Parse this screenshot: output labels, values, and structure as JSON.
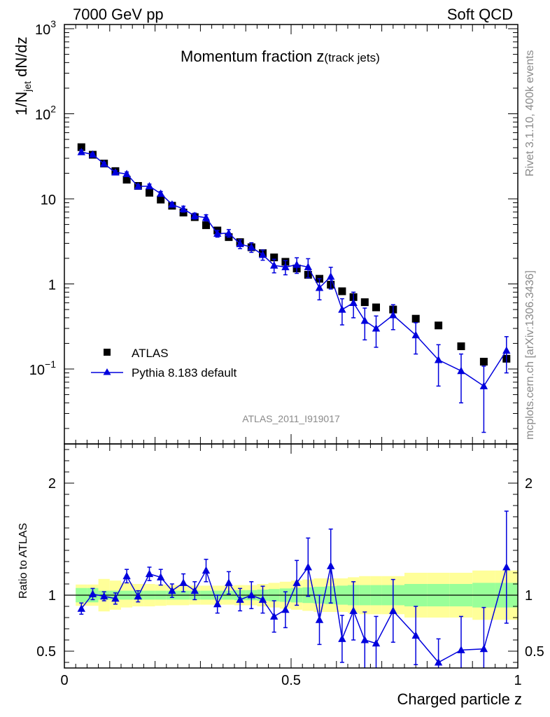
{
  "header": {
    "left": "7000 GeV pp",
    "right": "Soft QCD"
  },
  "side_labels": {
    "rivet": "Rivet 3.1.10,  400k events",
    "mcplots": "mcplots.cern.ch [arXiv:1306.3436]"
  },
  "chart_data": [
    {
      "type": "scatter",
      "panel": "main",
      "title_main": "Momentum fraction z",
      "title_sub": "(track jets)",
      "ylabel_main": "1/N",
      "ylabel_sub": "jet",
      "ylabel_tail": " dN/dz",
      "yscale": "log",
      "ylim": [
        0.012,
        1000
      ],
      "xlim": [
        0,
        1
      ],
      "y_tick_labels": [
        {
          "value": 1000,
          "base": "10",
          "exp": "3"
        },
        {
          "value": 100,
          "base": "10",
          "exp": "2"
        },
        {
          "value": 10,
          "base": "10",
          "exp": ""
        },
        {
          "value": 1,
          "base": "1",
          "exp": ""
        },
        {
          "value": 0.1,
          "base": "10",
          "exp": "−1"
        }
      ],
      "watermark": "ATLAS_2011_I919017",
      "legend": {
        "position": "lower-left",
        "entries": [
          {
            "label": "ATLAS",
            "marker": "square",
            "color": "#000000"
          },
          {
            "label": "Pythia 8.183 default",
            "marker": "triangle",
            "color": "#0000dd"
          }
        ]
      },
      "series": [
        {
          "name": "ATLAS",
          "color": "#000000",
          "x": [
            0.0375,
            0.0625,
            0.0875,
            0.1125,
            0.1375,
            0.1625,
            0.1875,
            0.2125,
            0.2375,
            0.2625,
            0.2875,
            0.3125,
            0.3375,
            0.3625,
            0.3875,
            0.4125,
            0.4375,
            0.4625,
            0.4875,
            0.5125,
            0.5375,
            0.5625,
            0.5875,
            0.6125,
            0.6375,
            0.6625,
            0.6875,
            0.725,
            0.775,
            0.825,
            0.875,
            0.925,
            0.975
          ],
          "y": [
            40.5,
            33.0,
            26.0,
            21.2,
            16.8,
            14.2,
            11.8,
            9.8,
            8.3,
            6.9,
            6.1,
            4.9,
            4.25,
            3.55,
            3.1,
            2.7,
            2.3,
            2.05,
            1.82,
            1.52,
            1.28,
            1.15,
            0.98,
            0.82,
            0.7,
            0.61,
            0.53,
            0.5,
            0.39,
            0.325,
            0.185,
            0.122,
            0.132
          ]
        },
        {
          "name": "Pythia 8.183 default",
          "color": "#0000dd",
          "x": [
            0.0375,
            0.0625,
            0.0875,
            0.1125,
            0.1375,
            0.1625,
            0.1875,
            0.2125,
            0.2375,
            0.2625,
            0.2875,
            0.3125,
            0.3375,
            0.3625,
            0.3875,
            0.4125,
            0.4375,
            0.4625,
            0.4875,
            0.5125,
            0.5375,
            0.5625,
            0.5875,
            0.6125,
            0.6375,
            0.6625,
            0.6875,
            0.725,
            0.775,
            0.825,
            0.875,
            0.925,
            0.975
          ],
          "y": [
            35.5,
            33.2,
            25.8,
            20.5,
            19.6,
            14.0,
            14.1,
            11.5,
            8.6,
            7.6,
            6.3,
            6.0,
            3.9,
            3.95,
            2.95,
            2.7,
            2.2,
            1.65,
            1.58,
            1.68,
            1.58,
            0.9,
            1.22,
            0.5,
            0.6,
            0.37,
            0.3,
            0.43,
            0.25,
            0.128,
            0.095,
            0.063,
            0.165
          ],
          "err": [
            2.0,
            1.4,
            1.1,
            1.0,
            1.1,
            0.7,
            0.8,
            0.7,
            0.5,
            0.6,
            0.5,
            0.5,
            0.35,
            0.4,
            0.35,
            0.35,
            0.3,
            0.3,
            0.3,
            0.35,
            0.4,
            0.25,
            0.35,
            0.17,
            0.2,
            0.15,
            0.12,
            0.14,
            0.1,
            0.065,
            0.055,
            0.045,
            0.075
          ]
        }
      ]
    },
    {
      "type": "scatter",
      "panel": "ratio",
      "xlabel": "Charged particle z",
      "ylabel": "Ratio to ATLAS",
      "ylim": [
        0.35,
        2.35
      ],
      "xlim": [
        0,
        1
      ],
      "x_tick_labels": [
        "0",
        "0.5",
        "1"
      ],
      "y_tick_labels": [
        "0.5",
        "1",
        "2"
      ],
      "reference_line": 1.0,
      "band_edges": [
        0.025,
        0.05,
        0.075,
        0.1,
        0.125,
        0.15,
        0.175,
        0.2,
        0.225,
        0.25,
        0.275,
        0.3,
        0.325,
        0.35,
        0.375,
        0.4,
        0.425,
        0.45,
        0.475,
        0.5,
        0.525,
        0.55,
        0.575,
        0.6,
        0.625,
        0.65,
        0.675,
        0.7,
        0.75,
        0.8,
        0.85,
        0.9,
        0.95,
        1.0
      ],
      "band_inner": [
        0.064,
        0.064,
        0.04,
        0.04,
        0.04,
        0.04,
        0.04,
        0.04,
        0.04,
        0.04,
        0.04,
        0.04,
        0.04,
        0.04,
        0.045,
        0.045,
        0.05,
        0.055,
        0.06,
        0.065,
        0.07,
        0.075,
        0.08,
        0.085,
        0.09,
        0.09,
        0.09,
        0.09,
        0.1,
        0.1,
        0.1,
        0.11,
        0.11
      ],
      "band_outer": [
        0.095,
        0.095,
        0.145,
        0.13,
        0.11,
        0.1,
        0.1,
        0.095,
        0.09,
        0.09,
        0.085,
        0.085,
        0.085,
        0.085,
        0.09,
        0.09,
        0.1,
        0.11,
        0.12,
        0.13,
        0.14,
        0.15,
        0.15,
        0.15,
        0.16,
        0.17,
        0.17,
        0.17,
        0.2,
        0.2,
        0.2,
        0.22,
        0.22
      ],
      "series": [
        {
          "name": "Pythia 8.183 default / ATLAS",
          "color": "#0000dd",
          "x": [
            0.0375,
            0.0625,
            0.0875,
            0.1125,
            0.1375,
            0.1625,
            0.1875,
            0.2125,
            0.2375,
            0.2625,
            0.2875,
            0.3125,
            0.3375,
            0.3625,
            0.3875,
            0.4125,
            0.4375,
            0.4625,
            0.4875,
            0.5125,
            0.5375,
            0.5625,
            0.5875,
            0.6125,
            0.6375,
            0.6625,
            0.6875,
            0.725,
            0.775,
            0.825,
            0.875,
            0.925,
            0.975
          ],
          "y": [
            0.88,
            1.01,
            0.99,
            0.97,
            1.17,
            0.99,
            1.19,
            1.16,
            1.04,
            1.11,
            1.04,
            1.22,
            0.92,
            1.11,
            0.96,
            1.0,
            0.96,
            0.81,
            0.87,
            1.11,
            1.25,
            0.78,
            1.26,
            0.61,
            0.86,
            0.6,
            0.57,
            0.86,
            0.64,
            0.4,
            0.51,
            0.52,
            1.25
          ],
          "err": [
            0.05,
            0.05,
            0.04,
            0.05,
            0.06,
            0.05,
            0.06,
            0.07,
            0.06,
            0.08,
            0.08,
            0.1,
            0.08,
            0.1,
            0.1,
            0.12,
            0.12,
            0.14,
            0.16,
            0.2,
            0.26,
            0.22,
            0.33,
            0.21,
            0.26,
            0.25,
            0.24,
            0.28,
            0.26,
            0.21,
            0.3,
            0.37,
            0.5
          ]
        }
      ]
    }
  ]
}
